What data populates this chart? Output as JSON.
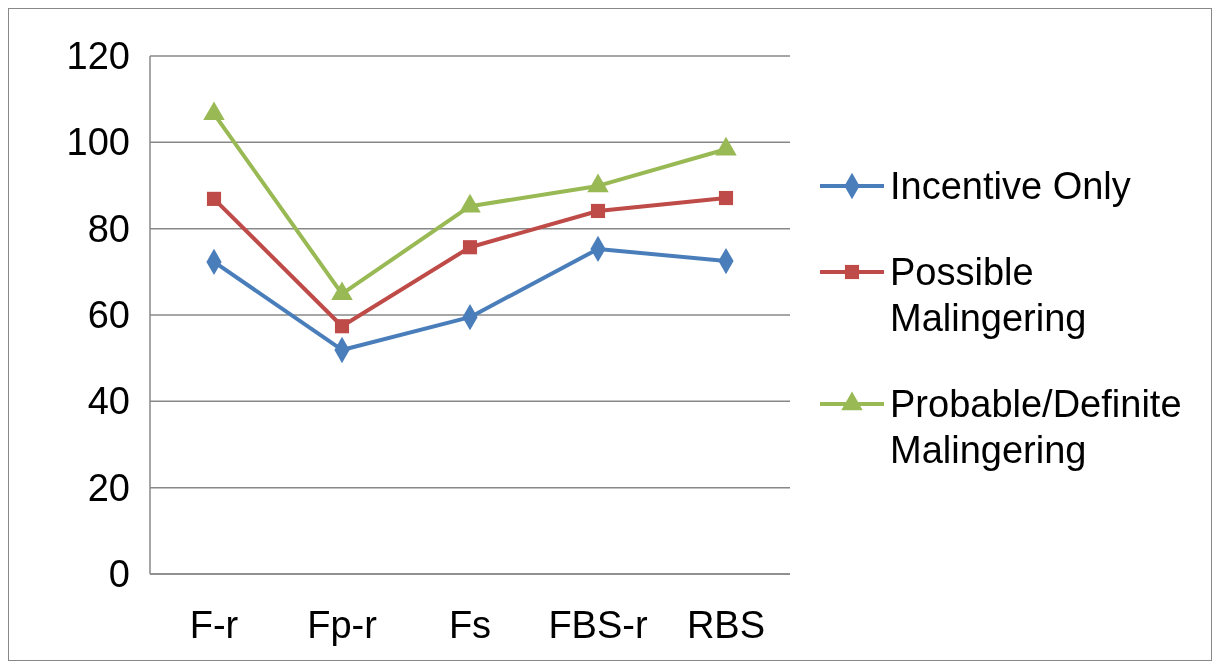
{
  "chart_data": {
    "type": "line",
    "categories": [
      "F-r",
      "Fp-r",
      "Fs",
      "FBS-r",
      "RBS"
    ],
    "series": [
      {
        "name": "Incentive Only",
        "color": "#4a7ebb",
        "marker": "diamond",
        "values": [
          72.3,
          51.9,
          59.5,
          75.3,
          72.5
        ]
      },
      {
        "name": "Possible Malingering",
        "color": "#be4b48",
        "marker": "square",
        "values": [
          86.9,
          57.4,
          75.7,
          84.1,
          87.1
        ]
      },
      {
        "name": "Probable/Definite Malingering",
        "color": "#98b954",
        "marker": "triangle",
        "values": [
          106.6,
          64.9,
          85.2,
          89.9,
          98.4
        ]
      }
    ],
    "ylim": [
      0,
      120
    ],
    "yticks": [
      0,
      20,
      40,
      60,
      80,
      100,
      120
    ],
    "grid": "y",
    "legend": "right"
  }
}
